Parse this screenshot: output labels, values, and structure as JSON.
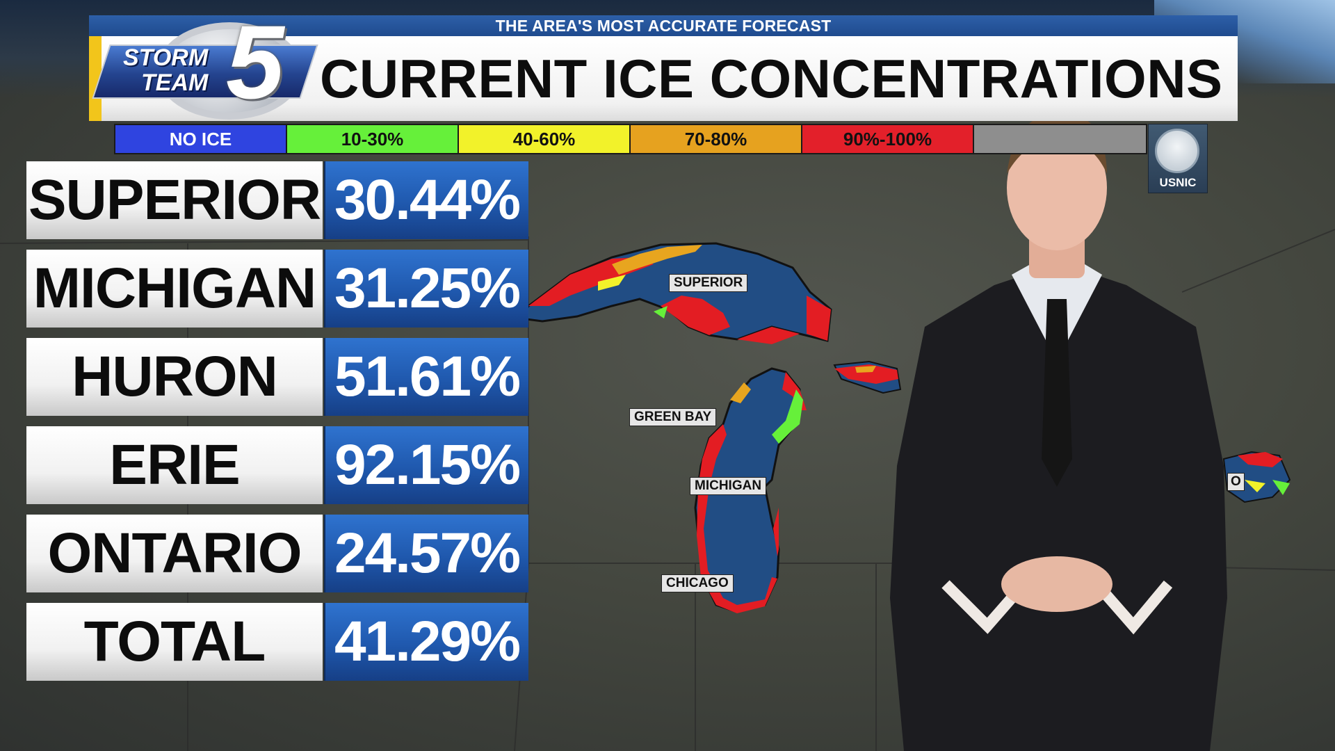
{
  "banner": {
    "tagline": "THE AREA'S MOST ACCURATE FORECAST",
    "title": "CURRENT ICE CONCENTRATIONS"
  },
  "logo": {
    "line1": "STORM",
    "line2": "TEAM",
    "number": "5"
  },
  "legend": [
    {
      "label": "NO ICE",
      "color": "#2f44e0"
    },
    {
      "label": "10-30%",
      "color": "#66f03a"
    },
    {
      "label": "40-60%",
      "color": "#f2f22a"
    },
    {
      "label": "70-80%",
      "color": "#e6a21f"
    },
    {
      "label": "90%-100%",
      "color": "#e3202a"
    },
    {
      "label": "",
      "color": "#8e8e8e"
    }
  ],
  "source_badge": "USNIC",
  "lakes": [
    {
      "name": "SUPERIOR",
      "value": "30.44%"
    },
    {
      "name": "MICHIGAN",
      "value": "31.25%"
    },
    {
      "name": "HURON",
      "value": "51.61%"
    },
    {
      "name": "ERIE",
      "value": "92.15%"
    },
    {
      "name": "ONTARIO",
      "value": "24.57%"
    },
    {
      "name": "TOTAL",
      "value": "41.29%"
    }
  ],
  "map_labels": {
    "superior": "SUPERIOR",
    "green_bay": "GREEN BAY",
    "michigan": "MICHIGAN",
    "chicago": "CHICAGO",
    "ontario_partial": "O"
  }
}
